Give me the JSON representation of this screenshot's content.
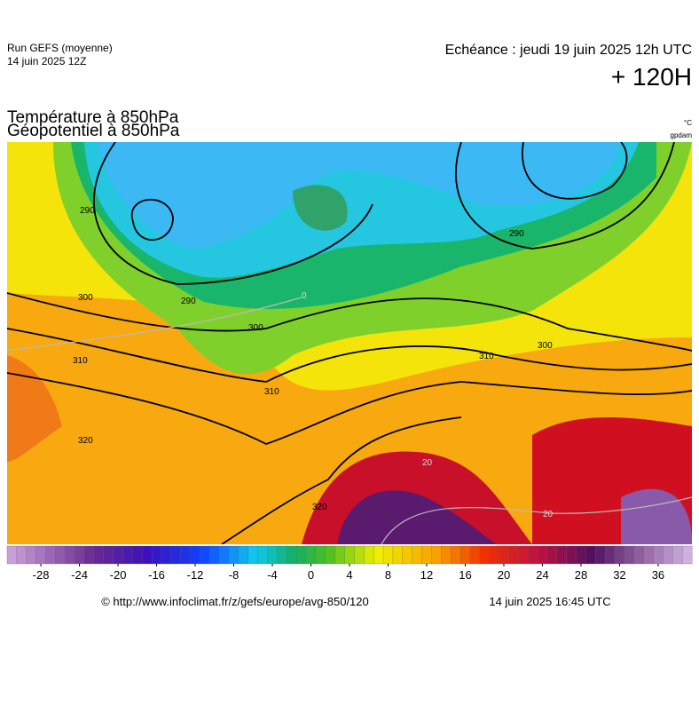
{
  "header": {
    "run": "Run GEFS (moyenne)",
    "run_date": "14 juin 2025 12Z",
    "valid": "Echéance : jeudi 19 juin 2025 12h UTC",
    "lead": "+ 120H"
  },
  "titles": [
    "Température à 850hPa",
    "Géopotentiel à 850hPa"
  ],
  "units": [
    "°C",
    "gpdam"
  ],
  "map": {
    "contour_labels": [
      "290",
      "290",
      "300",
      "300",
      "310",
      "310",
      "320",
      "320",
      "290",
      "300",
      "310",
      "20",
      "20",
      "0"
    ]
  },
  "colorbar": {
    "lim": [
      -31.5,
      39.5
    ],
    "ticks": [
      -28,
      -24,
      -20,
      -16,
      -12,
      -8,
      -4,
      0,
      4,
      8,
      12,
      16,
      20,
      24,
      28,
      32,
      36
    ]
  },
  "footer": {
    "url": "© http://www.infoclimat.fr/z/gefs/europe/avg-850/120",
    "issued": "14 juin 2025 16:45 UTC"
  }
}
